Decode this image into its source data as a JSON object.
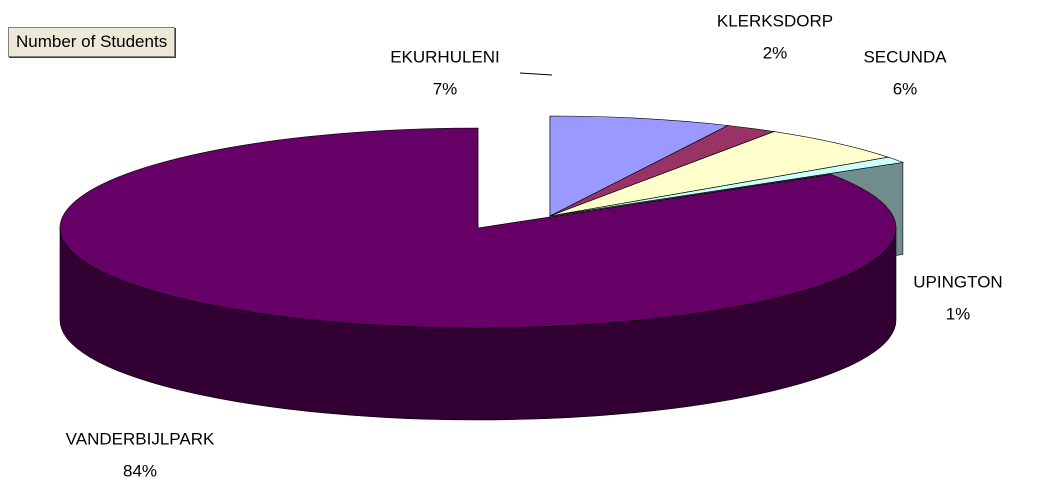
{
  "chart_data": {
    "type": "pie",
    "title": "Number of Students",
    "categories": [
      "EKURHULENI",
      "KLERKSDORP",
      "SECUNDA",
      "UPINGTON",
      "VANDERBIJLPARK"
    ],
    "values": [
      7,
      2,
      6,
      1,
      84
    ],
    "value_labels": [
      "7%",
      "2%",
      "6%",
      "1%",
      "84%"
    ],
    "colors": [
      "#9999ff",
      "#993366",
      "#ffffcc",
      "#ccffff",
      "#660066"
    ],
    "three_d": true
  }
}
